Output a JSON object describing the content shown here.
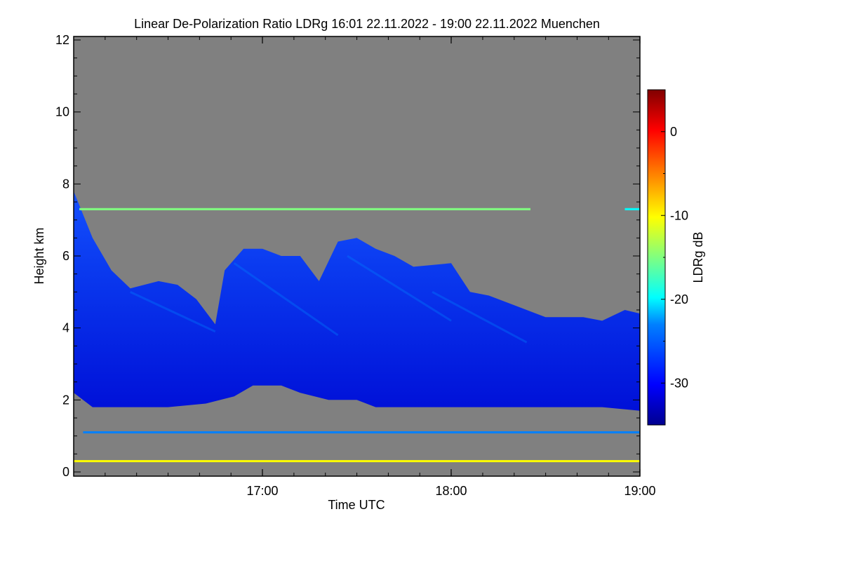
{
  "chart_data": {
    "type": "heatmap",
    "title": "Linear De-Polarization Ratio LDRg   16:01 22.11.2022 - 19:00 22.11.2022 Muenchen",
    "xlabel": "Time UTC",
    "ylabel": "Height km",
    "x_range_hours": [
      16.0,
      19.0
    ],
    "xticks": [
      {
        "value": 17.0,
        "label": "17:00"
      },
      {
        "value": 18.0,
        "label": "18:00"
      },
      {
        "value": 19.0,
        "label": "19:00"
      }
    ],
    "x_minor_step_hours": 0.1667,
    "ylim": [
      0,
      12
    ],
    "yticks": [
      {
        "value": 0,
        "label": "0"
      },
      {
        "value": 2,
        "label": "2"
      },
      {
        "value": 4,
        "label": "4"
      },
      {
        "value": 6,
        "label": "6"
      },
      {
        "value": 8,
        "label": "8"
      },
      {
        "value": 10,
        "label": "10"
      },
      {
        "value": 12,
        "label": "12"
      }
    ],
    "colorbar": {
      "label": "LDRg dB",
      "range": [
        -35,
        5
      ],
      "ticks": [
        {
          "value": 0,
          "label": "0"
        },
        {
          "value": -10,
          "label": "-10"
        },
        {
          "value": -20,
          "label": "-20"
        },
        {
          "value": -30,
          "label": "-30"
        }
      ],
      "colormap": [
        "#00008f",
        "#0000ff",
        "#0080ff",
        "#00ffff",
        "#80ff80",
        "#ffff00",
        "#ff8000",
        "#ff0000",
        "#800000"
      ]
    },
    "no_data_color": "#808080",
    "cloud_outline": {
      "top_km": [
        [
          16.0,
          7.8
        ],
        [
          16.1,
          6.5
        ],
        [
          16.2,
          5.6
        ],
        [
          16.3,
          5.1
        ],
        [
          16.45,
          5.3
        ],
        [
          16.55,
          5.2
        ],
        [
          16.65,
          4.8
        ],
        [
          16.75,
          4.1
        ],
        [
          16.8,
          5.6
        ],
        [
          16.9,
          6.2
        ],
        [
          17.0,
          6.2
        ],
        [
          17.1,
          6.0
        ],
        [
          17.2,
          6.0
        ],
        [
          17.3,
          5.3
        ],
        [
          17.4,
          6.4
        ],
        [
          17.5,
          6.5
        ],
        [
          17.6,
          6.2
        ],
        [
          17.7,
          6.0
        ],
        [
          17.8,
          5.7
        ],
        [
          18.0,
          5.8
        ],
        [
          18.1,
          5.0
        ],
        [
          18.2,
          4.9
        ],
        [
          18.35,
          4.6
        ],
        [
          18.5,
          4.3
        ],
        [
          18.7,
          4.3
        ],
        [
          18.8,
          4.2
        ],
        [
          18.92,
          4.5
        ],
        [
          19.0,
          4.4
        ]
      ],
      "base_km": [
        [
          16.0,
          2.2
        ],
        [
          16.1,
          1.8
        ],
        [
          16.3,
          1.8
        ],
        [
          16.5,
          1.8
        ],
        [
          16.7,
          1.9
        ],
        [
          16.85,
          2.1
        ],
        [
          16.95,
          2.4
        ],
        [
          17.1,
          2.4
        ],
        [
          17.2,
          2.2
        ],
        [
          17.35,
          2.0
        ],
        [
          17.5,
          2.0
        ],
        [
          17.6,
          1.8
        ],
        [
          17.8,
          1.8
        ],
        [
          18.0,
          1.8
        ],
        [
          18.2,
          1.8
        ],
        [
          18.4,
          1.8
        ],
        [
          18.6,
          1.8
        ],
        [
          18.8,
          1.8
        ],
        [
          19.0,
          1.7
        ]
      ],
      "ldr_db_core": -32,
      "ldr_db_top": -27
    },
    "layers": [
      {
        "name": "thin layer at 7.3 km",
        "height_km": 7.3,
        "t_start": 16.03,
        "t_end": 18.42,
        "ldr_db": -14
      },
      {
        "name": "thin layer at 7.3 km (late)",
        "height_km": 7.3,
        "t_start": 18.92,
        "t_end": 19.0,
        "ldr_db": -20
      },
      {
        "name": "near-ground layer",
        "height_km": 0.3,
        "t_start": 16.0,
        "t_end": 19.0,
        "ldr_db": -8
      },
      {
        "name": "low scattered layer",
        "height_km": 1.1,
        "t_start": 16.05,
        "t_end": 19.0,
        "ldr_db": -26
      }
    ]
  }
}
